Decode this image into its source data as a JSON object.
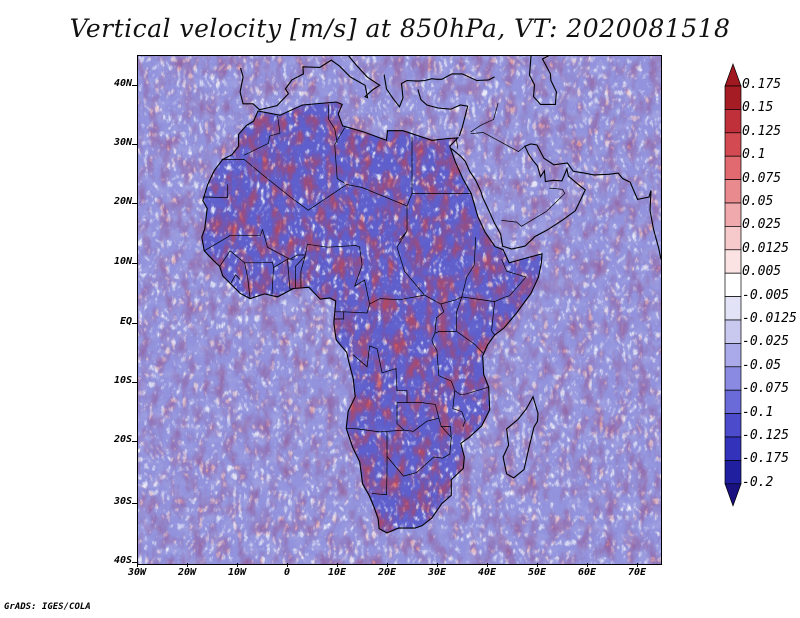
{
  "title": "Vertical velocity [m/s] at 850hPa, VT: 2020081518",
  "credit": "GrADS: IGES/COLA",
  "map": {
    "lat_labels": [
      "40N",
      "30N",
      "20N",
      "10N",
      "EQ",
      "10S",
      "20S",
      "30S",
      "40S"
    ],
    "lon_labels": [
      "30W",
      "20W",
      "10W",
      "0",
      "10E",
      "20E",
      "30E",
      "40E",
      "50E",
      "60E",
      "70E"
    ],
    "lon_range": [
      -30,
      75
    ],
    "lat_range": [
      -40,
      45
    ]
  },
  "colorbar": {
    "labels": [
      "0.175",
      "0.15",
      "0.125",
      "0.1",
      "0.075",
      "0.05",
      "0.025",
      "0.0125",
      "0.005",
      "-0.005",
      "-0.0125",
      "-0.025",
      "-0.05",
      "-0.075",
      "-0.1",
      "-0.125",
      "-0.175",
      "-0.2"
    ],
    "colors": [
      "#a51c24",
      "#c0303a",
      "#d44a52",
      "#e06a70",
      "#e88a8e",
      "#f0aaad",
      "#f6c9cb",
      "#fbe3e4",
      "#ffffff",
      "#e3e3f8",
      "#c9c9f0",
      "#aaaaea",
      "#8a8ae2",
      "#6a6ad8",
      "#4b4bcc",
      "#3232bb",
      "#1f1fa0"
    ],
    "top_arrow_color": "#a01820",
    "bottom_arrow_color": "#1a1080"
  }
}
